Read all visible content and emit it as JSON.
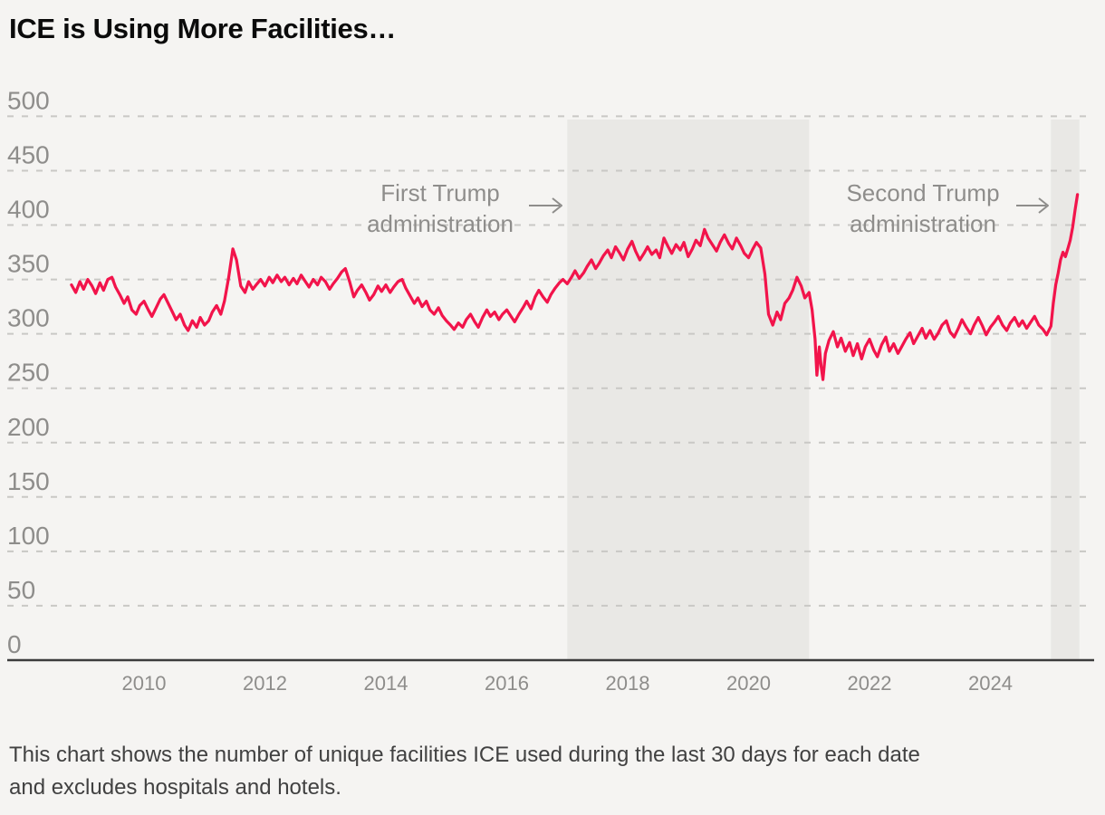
{
  "title": "ICE is Using More Facilities…",
  "annotations": [
    {
      "line1": "First Trump",
      "line2": "administration"
    },
    {
      "line1": "Second Trump",
      "line2": "administration"
    }
  ],
  "caption": {
    "line1": "This chart shows the number of unique facilities ICE used during the last 30 days for each date",
    "line2": "and excludes hospitals and hotels."
  },
  "colors": {
    "background": "#f5f4f2",
    "line": "#f2144b",
    "shading": "#e9e8e5",
    "grid": "#c9c8c5",
    "axis": "#3c3c3c",
    "tick_label": "#8e8d8b",
    "annotation": "#8e8d8b",
    "title": "#0b0b0b",
    "caption": "#414141"
  },
  "chart_data": {
    "type": "line",
    "title": "ICE is Using More Facilities…",
    "xlabel": "",
    "ylabel": "",
    "xlim": [
      2008.8,
      2025.5
    ],
    "ylim": [
      0,
      500
    ],
    "y_ticks": [
      0,
      50,
      100,
      150,
      200,
      250,
      300,
      350,
      400,
      450,
      500
    ],
    "x_ticks": [
      2010,
      2012,
      2014,
      2016,
      2018,
      2020,
      2022,
      2024
    ],
    "grid": "dashed-horizontal",
    "legend": "none",
    "shaded_regions": [
      {
        "label": "First Trump administration",
        "from": 2017.0,
        "to": 2021.0
      },
      {
        "label": "Second Trump administration",
        "from": 2025.0,
        "to": 2025.47
      }
    ],
    "series": [
      {
        "name": "Unique facilities ICE used during the last 30 days",
        "color": "#f2144b",
        "points": [
          [
            2008.8,
            345
          ],
          [
            2008.87,
            338
          ],
          [
            2008.94,
            348
          ],
          [
            2009.0,
            341
          ],
          [
            2009.07,
            350
          ],
          [
            2009.14,
            344
          ],
          [
            2009.2,
            337
          ],
          [
            2009.27,
            347
          ],
          [
            2009.33,
            340
          ],
          [
            2009.4,
            350
          ],
          [
            2009.47,
            352
          ],
          [
            2009.53,
            343
          ],
          [
            2009.6,
            336
          ],
          [
            2009.67,
            328
          ],
          [
            2009.73,
            334
          ],
          [
            2009.8,
            322
          ],
          [
            2009.87,
            318
          ],
          [
            2009.93,
            326
          ],
          [
            2010.0,
            330
          ],
          [
            2010.07,
            322
          ],
          [
            2010.13,
            316
          ],
          [
            2010.2,
            324
          ],
          [
            2010.27,
            332
          ],
          [
            2010.33,
            336
          ],
          [
            2010.4,
            328
          ],
          [
            2010.47,
            320
          ],
          [
            2010.53,
            313
          ],
          [
            2010.6,
            318
          ],
          [
            2010.67,
            308
          ],
          [
            2010.73,
            303
          ],
          [
            2010.8,
            312
          ],
          [
            2010.87,
            306
          ],
          [
            2010.93,
            315
          ],
          [
            2011.0,
            308
          ],
          [
            2011.07,
            312
          ],
          [
            2011.13,
            320
          ],
          [
            2011.2,
            326
          ],
          [
            2011.27,
            318
          ],
          [
            2011.33,
            330
          ],
          [
            2011.4,
            352
          ],
          [
            2011.47,
            378
          ],
          [
            2011.53,
            368
          ],
          [
            2011.6,
            344
          ],
          [
            2011.67,
            338
          ],
          [
            2011.73,
            348
          ],
          [
            2011.8,
            341
          ],
          [
            2011.87,
            346
          ],
          [
            2011.93,
            350
          ],
          [
            2012.0,
            344
          ],
          [
            2012.07,
            352
          ],
          [
            2012.13,
            347
          ],
          [
            2012.2,
            354
          ],
          [
            2012.27,
            348
          ],
          [
            2012.33,
            352
          ],
          [
            2012.4,
            345
          ],
          [
            2012.47,
            351
          ],
          [
            2012.53,
            346
          ],
          [
            2012.6,
            354
          ],
          [
            2012.67,
            348
          ],
          [
            2012.73,
            343
          ],
          [
            2012.8,
            350
          ],
          [
            2012.87,
            345
          ],
          [
            2012.93,
            352
          ],
          [
            2013.0,
            348
          ],
          [
            2013.07,
            341
          ],
          [
            2013.13,
            346
          ],
          [
            2013.2,
            351
          ],
          [
            2013.27,
            357
          ],
          [
            2013.33,
            360
          ],
          [
            2013.4,
            348
          ],
          [
            2013.47,
            334
          ],
          [
            2013.53,
            340
          ],
          [
            2013.6,
            345
          ],
          [
            2013.67,
            338
          ],
          [
            2013.73,
            331
          ],
          [
            2013.8,
            336
          ],
          [
            2013.87,
            344
          ],
          [
            2013.93,
            339
          ],
          [
            2014.0,
            345
          ],
          [
            2014.07,
            338
          ],
          [
            2014.13,
            343
          ],
          [
            2014.2,
            348
          ],
          [
            2014.27,
            350
          ],
          [
            2014.33,
            342
          ],
          [
            2014.4,
            335
          ],
          [
            2014.47,
            328
          ],
          [
            2014.53,
            333
          ],
          [
            2014.6,
            325
          ],
          [
            2014.67,
            330
          ],
          [
            2014.73,
            322
          ],
          [
            2014.8,
            318
          ],
          [
            2014.87,
            324
          ],
          [
            2014.93,
            317
          ],
          [
            2015.0,
            312
          ],
          [
            2015.07,
            308
          ],
          [
            2015.13,
            304
          ],
          [
            2015.2,
            310
          ],
          [
            2015.27,
            306
          ],
          [
            2015.33,
            313
          ],
          [
            2015.4,
            318
          ],
          [
            2015.47,
            311
          ],
          [
            2015.53,
            306
          ],
          [
            2015.6,
            315
          ],
          [
            2015.67,
            322
          ],
          [
            2015.73,
            316
          ],
          [
            2015.8,
            320
          ],
          [
            2015.87,
            313
          ],
          [
            2015.93,
            318
          ],
          [
            2016.0,
            322
          ],
          [
            2016.07,
            316
          ],
          [
            2016.13,
            311
          ],
          [
            2016.2,
            318
          ],
          [
            2016.27,
            324
          ],
          [
            2016.33,
            330
          ],
          [
            2016.4,
            323
          ],
          [
            2016.47,
            334
          ],
          [
            2016.53,
            340
          ],
          [
            2016.6,
            334
          ],
          [
            2016.67,
            329
          ],
          [
            2016.73,
            336
          ],
          [
            2016.8,
            342
          ],
          [
            2016.87,
            347
          ],
          [
            2016.93,
            350
          ],
          [
            2017.0,
            346
          ],
          [
            2017.07,
            352
          ],
          [
            2017.13,
            358
          ],
          [
            2017.2,
            351
          ],
          [
            2017.27,
            356
          ],
          [
            2017.33,
            362
          ],
          [
            2017.4,
            368
          ],
          [
            2017.47,
            360
          ],
          [
            2017.53,
            365
          ],
          [
            2017.6,
            372
          ],
          [
            2017.67,
            377
          ],
          [
            2017.73,
            370
          ],
          [
            2017.8,
            380
          ],
          [
            2017.87,
            374
          ],
          [
            2017.93,
            368
          ],
          [
            2018.0,
            378
          ],
          [
            2018.07,
            385
          ],
          [
            2018.13,
            376
          ],
          [
            2018.2,
            368
          ],
          [
            2018.27,
            374
          ],
          [
            2018.33,
            380
          ],
          [
            2018.4,
            373
          ],
          [
            2018.47,
            377
          ],
          [
            2018.53,
            370
          ],
          [
            2018.6,
            388
          ],
          [
            2018.67,
            380
          ],
          [
            2018.73,
            374
          ],
          [
            2018.8,
            382
          ],
          [
            2018.87,
            377
          ],
          [
            2018.93,
            384
          ],
          [
            2019.0,
            371
          ],
          [
            2019.07,
            378
          ],
          [
            2019.13,
            386
          ],
          [
            2019.2,
            381
          ],
          [
            2019.27,
            396
          ],
          [
            2019.33,
            388
          ],
          [
            2019.4,
            382
          ],
          [
            2019.47,
            376
          ],
          [
            2019.53,
            384
          ],
          [
            2019.6,
            391
          ],
          [
            2019.67,
            383
          ],
          [
            2019.73,
            378
          ],
          [
            2019.8,
            388
          ],
          [
            2019.87,
            381
          ],
          [
            2019.93,
            374
          ],
          [
            2020.0,
            370
          ],
          [
            2020.07,
            378
          ],
          [
            2020.13,
            384
          ],
          [
            2020.2,
            379
          ],
          [
            2020.27,
            355
          ],
          [
            2020.33,
            318
          ],
          [
            2020.4,
            308
          ],
          [
            2020.47,
            320
          ],
          [
            2020.53,
            313
          ],
          [
            2020.6,
            328
          ],
          [
            2020.67,
            333
          ],
          [
            2020.73,
            340
          ],
          [
            2020.8,
            352
          ],
          [
            2020.87,
            344
          ],
          [
            2020.93,
            333
          ],
          [
            2021.0,
            338
          ],
          [
            2021.05,
            322
          ],
          [
            2021.1,
            295
          ],
          [
            2021.13,
            262
          ],
          [
            2021.17,
            288
          ],
          [
            2021.2,
            270
          ],
          [
            2021.23,
            258
          ],
          [
            2021.27,
            282
          ],
          [
            2021.33,
            294
          ],
          [
            2021.4,
            302
          ],
          [
            2021.47,
            288
          ],
          [
            2021.53,
            296
          ],
          [
            2021.6,
            284
          ],
          [
            2021.67,
            292
          ],
          [
            2021.73,
            280
          ],
          [
            2021.8,
            291
          ],
          [
            2021.87,
            277
          ],
          [
            2021.93,
            288
          ],
          [
            2022.0,
            295
          ],
          [
            2022.07,
            285
          ],
          [
            2022.13,
            279
          ],
          [
            2022.2,
            290
          ],
          [
            2022.27,
            297
          ],
          [
            2022.33,
            284
          ],
          [
            2022.4,
            291
          ],
          [
            2022.47,
            282
          ],
          [
            2022.53,
            288
          ],
          [
            2022.6,
            295
          ],
          [
            2022.67,
            301
          ],
          [
            2022.73,
            291
          ],
          [
            2022.8,
            298
          ],
          [
            2022.87,
            305
          ],
          [
            2022.93,
            296
          ],
          [
            2023.0,
            303
          ],
          [
            2023.07,
            295
          ],
          [
            2023.13,
            300
          ],
          [
            2023.2,
            308
          ],
          [
            2023.27,
            312
          ],
          [
            2023.33,
            302
          ],
          [
            2023.4,
            297
          ],
          [
            2023.47,
            305
          ],
          [
            2023.53,
            313
          ],
          [
            2023.6,
            306
          ],
          [
            2023.67,
            300
          ],
          [
            2023.73,
            308
          ],
          [
            2023.8,
            315
          ],
          [
            2023.87,
            307
          ],
          [
            2023.93,
            299
          ],
          [
            2024.0,
            306
          ],
          [
            2024.07,
            311
          ],
          [
            2024.13,
            316
          ],
          [
            2024.2,
            308
          ],
          [
            2024.27,
            303
          ],
          [
            2024.33,
            310
          ],
          [
            2024.4,
            315
          ],
          [
            2024.47,
            307
          ],
          [
            2024.53,
            312
          ],
          [
            2024.6,
            305
          ],
          [
            2024.67,
            311
          ],
          [
            2024.73,
            316
          ],
          [
            2024.8,
            308
          ],
          [
            2024.87,
            304
          ],
          [
            2024.93,
            299
          ],
          [
            2025.0,
            307
          ],
          [
            2025.04,
            328
          ],
          [
            2025.08,
            345
          ],
          [
            2025.12,
            356
          ],
          [
            2025.16,
            368
          ],
          [
            2025.2,
            375
          ],
          [
            2025.24,
            371
          ],
          [
            2025.28,
            378
          ],
          [
            2025.32,
            386
          ],
          [
            2025.36,
            398
          ],
          [
            2025.4,
            414
          ],
          [
            2025.44,
            428
          ]
        ]
      }
    ]
  }
}
